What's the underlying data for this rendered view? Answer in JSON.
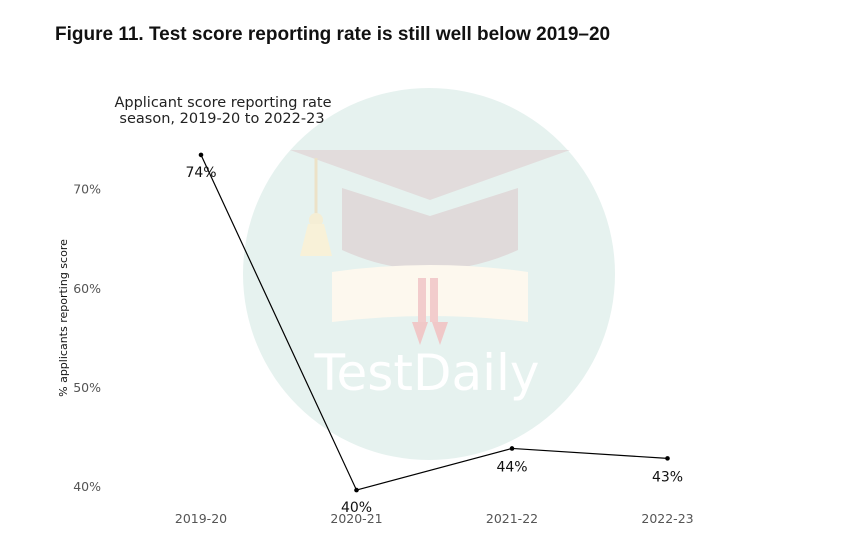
{
  "figure_title": "Figure 11. Test score reporting rate is still well below 2019–20",
  "watermark": {
    "text": "TestDaily",
    "icon": "graduation-cap-diploma-icon",
    "circle_color": "#e6f2ef"
  },
  "chart_data": {
    "type": "line",
    "title_lines": [
      "Applicant score reporting rate",
      "season, 2019-20 to 2022-23"
    ],
    "xlabel": "",
    "ylabel": "% applicants reporting score",
    "categories": [
      "2019-20",
      "2020-21",
      "2021-22",
      "2022-23"
    ],
    "values": [
      73.5,
      39.7,
      43.9,
      42.9
    ],
    "data_labels": [
      "74%",
      "40%",
      "44%",
      "43%"
    ],
    "yticks": [
      40,
      50,
      60,
      70
    ],
    "ytick_labels": [
      "40%",
      "50%",
      "60%",
      "70%"
    ],
    "ylim": [
      38.5,
      75
    ],
    "grid": false,
    "line_color": "#000000"
  }
}
